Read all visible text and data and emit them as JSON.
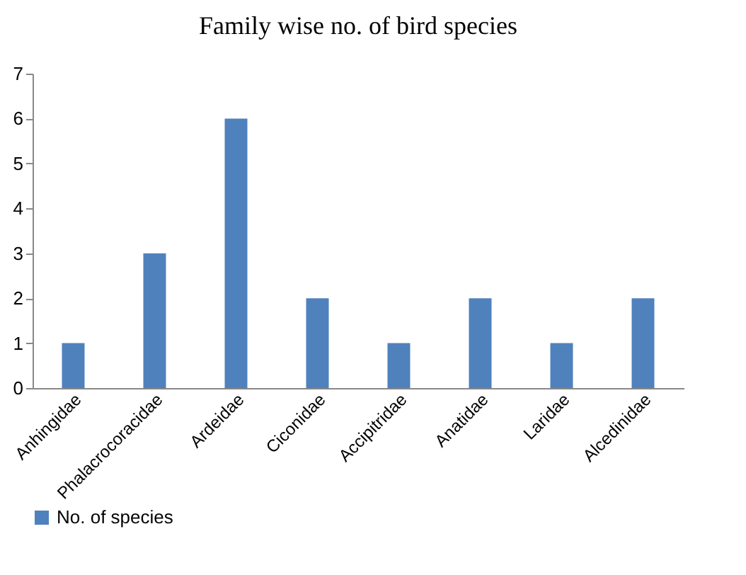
{
  "chart_data": {
    "type": "bar",
    "title": "Family wise no. of bird species",
    "categories": [
      "Anhingidae",
      "Phalacrocoracidae",
      "Ardeidae",
      "Ciconidae",
      "Accipitridae",
      "Anatidae",
      "Laridae",
      "Alcedinidae"
    ],
    "series": [
      {
        "name": "No. of species",
        "color": "#4f81bd",
        "values": [
          1,
          3,
          6,
          2,
          1,
          2,
          1,
          2
        ]
      }
    ],
    "ylim": [
      0,
      7
    ],
    "yticks": [
      0,
      1,
      2,
      3,
      4,
      5,
      6,
      7
    ],
    "legend": "bottom"
  }
}
